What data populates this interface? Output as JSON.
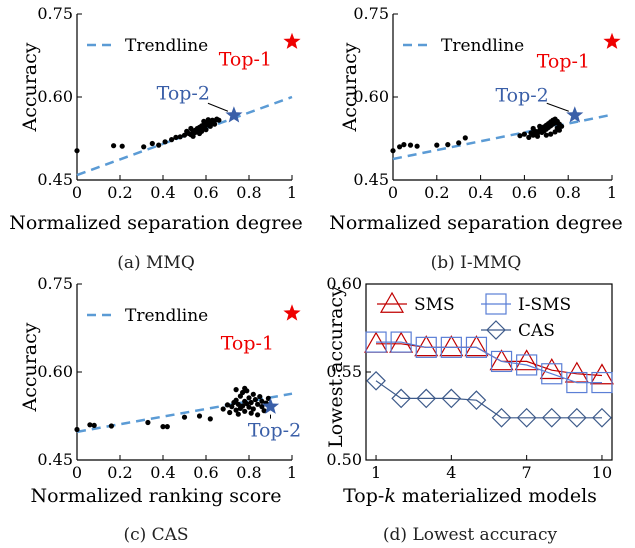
{
  "colors": {
    "trend": "#5b9bd5",
    "top1": "#ee0000",
    "top2": "#3a5fa8",
    "sms": "#c00000",
    "isms": "#5b7fd6",
    "cas": "#3d5a8a",
    "axis": "#000000"
  },
  "chart_data": [
    {
      "id": "a",
      "type": "scatter",
      "caption": "(a) MMQ",
      "xlabel": "Normalized separation degree",
      "ylabel": "Accuracy",
      "xlim": [
        0,
        1
      ],
      "ylim": [
        0.45,
        0.75
      ],
      "xticks": [
        "0",
        "0.2",
        "0.4",
        "0.6",
        "0.8",
        "1"
      ],
      "yticks": [
        "0.45",
        "0.60",
        "0.75"
      ],
      "legend": "Trendline",
      "trendline": [
        [
          0,
          0.459
        ],
        [
          1,
          0.6
        ]
      ],
      "top1": {
        "label": "Top-1",
        "x": 1.0,
        "y": 0.7
      },
      "top2": {
        "label": "Top-2",
        "x": 0.73,
        "y": 0.567
      },
      "points": [
        [
          0,
          0.503
        ],
        [
          0.17,
          0.512
        ],
        [
          0.21,
          0.511
        ],
        [
          0.31,
          0.51
        ],
        [
          0.35,
          0.516
        ],
        [
          0.38,
          0.513
        ],
        [
          0.41,
          0.519
        ],
        [
          0.44,
          0.523
        ],
        [
          0.46,
          0.527
        ],
        [
          0.48,
          0.528
        ],
        [
          0.5,
          0.531
        ],
        [
          0.52,
          0.534
        ],
        [
          0.53,
          0.532
        ],
        [
          0.54,
          0.537
        ],
        [
          0.55,
          0.536
        ],
        [
          0.55,
          0.54
        ],
        [
          0.56,
          0.539
        ],
        [
          0.56,
          0.543
        ],
        [
          0.57,
          0.541
        ],
        [
          0.57,
          0.545
        ],
        [
          0.58,
          0.544
        ],
        [
          0.58,
          0.548
        ],
        [
          0.59,
          0.546
        ],
        [
          0.59,
          0.55
        ],
        [
          0.6,
          0.549
        ],
        [
          0.6,
          0.552
        ],
        [
          0.61,
          0.551
        ],
        [
          0.61,
          0.554
        ],
        [
          0.62,
          0.553
        ],
        [
          0.62,
          0.556
        ],
        [
          0.63,
          0.555
        ],
        [
          0.63,
          0.558
        ],
        [
          0.64,
          0.557
        ],
        [
          0.65,
          0.56
        ],
        [
          0.66,
          0.558
        ],
        [
          0.54,
          0.529
        ],
        [
          0.57,
          0.534
        ],
        [
          0.6,
          0.541
        ],
        [
          0.51,
          0.538
        ],
        [
          0.53,
          0.543
        ],
        [
          0.58,
          0.538
        ],
        [
          0.62,
          0.547
        ],
        [
          0.64,
          0.551
        ],
        [
          0.59,
          0.556
        ],
        [
          0.61,
          0.559
        ]
      ]
    },
    {
      "id": "b",
      "type": "scatter",
      "caption": "(b) I-MMQ",
      "xlabel": "Normalized separation degree",
      "ylabel": "Accuracy",
      "xlim": [
        0,
        1
      ],
      "ylim": [
        0.45,
        0.75
      ],
      "xticks": [
        "0",
        "0.2",
        "0.4",
        "0.6",
        "0.8",
        "1"
      ],
      "yticks": [
        "0.45",
        "0.60",
        "0.75"
      ],
      "legend": "Trendline",
      "trendline": [
        [
          0,
          0.488
        ],
        [
          1,
          0.568
        ]
      ],
      "top1": {
        "label": "Top-1",
        "x": 1.0,
        "y": 0.7
      },
      "top2": {
        "label": "Top-2",
        "x": 0.83,
        "y": 0.567
      },
      "points": [
        [
          0,
          0.503
        ],
        [
          0.03,
          0.51
        ],
        [
          0.05,
          0.514
        ],
        [
          0.08,
          0.513
        ],
        [
          0.11,
          0.511
        ],
        [
          0.2,
          0.513
        ],
        [
          0.25,
          0.514
        ],
        [
          0.3,
          0.517
        ],
        [
          0.33,
          0.526
        ],
        [
          0.58,
          0.53
        ],
        [
          0.6,
          0.533
        ],
        [
          0.62,
          0.527
        ],
        [
          0.63,
          0.535
        ],
        [
          0.64,
          0.531
        ],
        [
          0.65,
          0.538
        ],
        [
          0.66,
          0.534
        ],
        [
          0.67,
          0.54
        ],
        [
          0.68,
          0.536
        ],
        [
          0.68,
          0.543
        ],
        [
          0.69,
          0.539
        ],
        [
          0.69,
          0.546
        ],
        [
          0.7,
          0.542
        ],
        [
          0.7,
          0.549
        ],
        [
          0.71,
          0.545
        ],
        [
          0.71,
          0.552
        ],
        [
          0.72,
          0.548
        ],
        [
          0.72,
          0.555
        ],
        [
          0.73,
          0.551
        ],
        [
          0.73,
          0.558
        ],
        [
          0.74,
          0.553
        ],
        [
          0.74,
          0.56
        ],
        [
          0.75,
          0.556
        ],
        [
          0.76,
          0.551
        ],
        [
          0.77,
          0.547
        ],
        [
          0.66,
          0.529
        ],
        [
          0.7,
          0.531
        ],
        [
          0.74,
          0.537
        ],
        [
          0.76,
          0.54
        ],
        [
          0.64,
          0.543
        ],
        [
          0.67,
          0.547
        ],
        [
          0.72,
          0.533
        ],
        [
          0.75,
          0.544
        ]
      ]
    },
    {
      "id": "c",
      "type": "scatter",
      "caption": "(c) CAS",
      "xlabel": "Normalized ranking score",
      "ylabel": "Accuracy",
      "xlim": [
        0,
        1
      ],
      "ylim": [
        0.45,
        0.75
      ],
      "xticks": [
        "0",
        "0.2",
        "0.4",
        "0.6",
        "0.8",
        "1"
      ],
      "yticks": [
        "0.45",
        "0.60",
        "0.75"
      ],
      "legend": "Trendline",
      "trendline": [
        [
          0,
          0.498
        ],
        [
          1,
          0.563
        ]
      ],
      "top1": {
        "label": "Top-1",
        "x": 1.0,
        "y": 0.7
      },
      "top2": {
        "label": "Top-2",
        "x": 0.9,
        "y": 0.541
      },
      "points": [
        [
          0,
          0.502
        ],
        [
          0.06,
          0.51
        ],
        [
          0.08,
          0.509
        ],
        [
          0.16,
          0.508
        ],
        [
          0.33,
          0.514
        ],
        [
          0.4,
          0.507
        ],
        [
          0.42,
          0.507
        ],
        [
          0.5,
          0.523
        ],
        [
          0.57,
          0.525
        ],
        [
          0.62,
          0.52
        ],
        [
          0.68,
          0.537
        ],
        [
          0.7,
          0.544
        ],
        [
          0.71,
          0.531
        ],
        [
          0.72,
          0.541
        ],
        [
          0.73,
          0.548
        ],
        [
          0.74,
          0.535
        ],
        [
          0.74,
          0.552
        ],
        [
          0.75,
          0.528
        ],
        [
          0.75,
          0.545
        ],
        [
          0.76,
          0.538
        ],
        [
          0.76,
          0.559
        ],
        [
          0.77,
          0.542
        ],
        [
          0.77,
          0.565
        ],
        [
          0.78,
          0.533
        ],
        [
          0.78,
          0.55
        ],
        [
          0.79,
          0.546
        ],
        [
          0.79,
          0.568
        ],
        [
          0.8,
          0.54
        ],
        [
          0.8,
          0.556
        ],
        [
          0.81,
          0.53
        ],
        [
          0.81,
          0.548
        ],
        [
          0.82,
          0.562
        ],
        [
          0.82,
          0.537
        ],
        [
          0.83,
          0.553
        ],
        [
          0.84,
          0.545
        ],
        [
          0.84,
          0.527
        ],
        [
          0.85,
          0.558
        ],
        [
          0.86,
          0.541
        ],
        [
          0.86,
          0.55
        ],
        [
          0.87,
          0.534
        ],
        [
          0.88,
          0.547
        ],
        [
          0.89,
          0.555
        ],
        [
          0.74,
          0.57
        ],
        [
          0.78,
          0.572
        ]
      ]
    },
    {
      "id": "d",
      "type": "line",
      "caption": "(d) Lowest accuracy",
      "xlabel": "Top-k materialized models",
      "xlabel_pre": "Top-",
      "xlabel_k": "k",
      "xlabel_post": " materialized models",
      "ylabel": "Lowest accuracy",
      "xlim": [
        0.6,
        10.4
      ],
      "ylim": [
        0.5,
        0.6
      ],
      "xticks": [
        "1",
        "4",
        "7",
        "10"
      ],
      "yticks": [
        "0.50",
        "0.55",
        "0.60"
      ],
      "x": [
        1,
        2,
        3,
        4,
        5,
        6,
        7,
        8,
        9,
        10
      ],
      "series": [
        {
          "name": "SMS",
          "marker": "triangle",
          "values": [
            0.566,
            0.566,
            0.564,
            0.564,
            0.564,
            0.556,
            0.556,
            0.551,
            0.549,
            0.548
          ]
        },
        {
          "name": "I-SMS",
          "marker": "square",
          "values": [
            0.567,
            0.567,
            0.564,
            0.564,
            0.564,
            0.556,
            0.554,
            0.549,
            0.544,
            0.544
          ]
        },
        {
          "name": "CAS",
          "marker": "diamond",
          "values": [
            0.545,
            0.535,
            0.535,
            0.535,
            0.534,
            0.524,
            0.524,
            0.524,
            0.524,
            0.524
          ]
        }
      ]
    }
  ]
}
